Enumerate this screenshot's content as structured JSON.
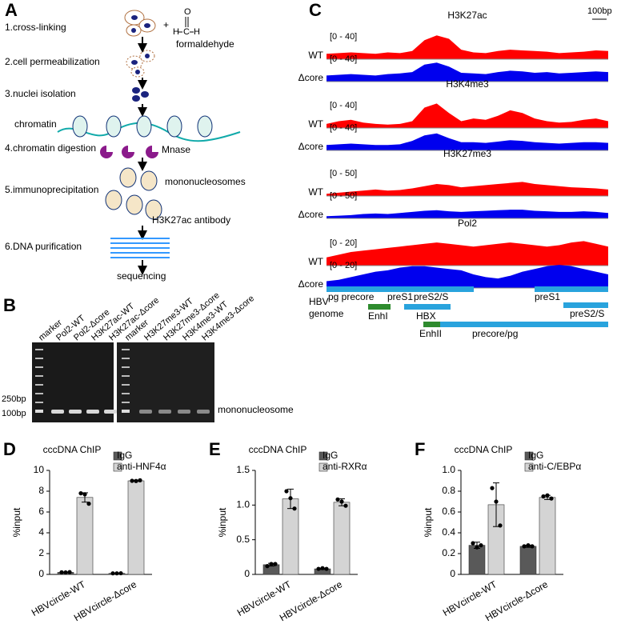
{
  "panel_a": {
    "label": "A",
    "steps": [
      "1.cross-linking",
      "2.cell permeabilization",
      "3.nuclei isolation",
      "4.chromatin digestion",
      "5.immunoprecipitation",
      "6.DNA purification"
    ],
    "plus": "+",
    "formula": [
      "O",
      "C",
      "H",
      "H"
    ],
    "labels": {
      "formaldehyde": "formaldehyde",
      "chromatin": "chromatin",
      "mnase": "Mnase",
      "mononucleosomes": "mononucleosomes",
      "antibody": "H3K27ac antibody",
      "sequencing": "sequencing"
    }
  },
  "panel_b": {
    "label": "B",
    "gel1_lanes": [
      "marker",
      "Pol2-WT",
      "Pol2-Δcore",
      "H3K27ac-WT",
      "H3K27ac-Δcore"
    ],
    "gel2_lanes": [
      "marker",
      "H3K27me3-WT",
      "H3K27me3-Δcore",
      "H3K4me3-WT",
      "H3K4me3-Δcore"
    ],
    "size_labels": [
      "250bp",
      "100bp"
    ],
    "band_label": "mononucleosome"
  },
  "panel_c": {
    "label": "C",
    "scale": "100bp",
    "tracks": [
      {
        "title": "H3K27ac",
        "samples": [
          {
            "name": "WT",
            "range_label": "[0 - 40]",
            "ylim": [
              0,
              40
            ],
            "color": "#ff0000",
            "values": [
              8,
              9,
              10,
              9,
              8,
              10,
              9,
              12,
              28,
              35,
              30,
              14,
              10,
              9,
              12,
              14,
              13,
              12,
              11,
              9,
              10,
              11,
              13,
              12
            ]
          },
          {
            "name": "Δcore",
            "range_label": "[0 - 40]",
            "ylim": [
              0,
              40
            ],
            "color": "#0000ee",
            "values": [
              9,
              10,
              11,
              10,
              9,
              11,
              12,
              14,
              25,
              28,
              22,
              13,
              12,
              11,
              14,
              16,
              15,
              13,
              14,
              12,
              13,
              14,
              15,
              14
            ]
          }
        ]
      },
      {
        "title": "H3K4me3",
        "samples": [
          {
            "name": "WT",
            "range_label": "[0 - 40]",
            "ylim": [
              0,
              40
            ],
            "color": "#ff0000",
            "values": [
              6,
              10,
              12,
              8,
              6,
              5,
              6,
              10,
              30,
              36,
              22,
              10,
              14,
              12,
              18,
              26,
              22,
              14,
              10,
              8,
              9,
              12,
              14,
              10
            ]
          },
          {
            "name": "Δcore",
            "range_label": "[0 - 40]",
            "ylim": [
              0,
              40
            ],
            "color": "#0000ee",
            "values": [
              8,
              9,
              10,
              9,
              8,
              8,
              9,
              14,
              22,
              25,
              18,
              12,
              12,
              11,
              13,
              15,
              14,
              12,
              11,
              10,
              11,
              12,
              12,
              11
            ]
          }
        ]
      },
      {
        "title": "H3K27me3",
        "samples": [
          {
            "name": "WT",
            "range_label": "[0 - 50]",
            "ylim": [
              0,
              50
            ],
            "color": "#ff0000",
            "values": [
              4,
              6,
              8,
              10,
              12,
              10,
              11,
              14,
              18,
              22,
              20,
              16,
              18,
              20,
              22,
              24,
              26,
              22,
              20,
              18,
              16,
              15,
              14,
              12
            ]
          },
          {
            "name": "Δcore",
            "range_label": "[0 - 50]",
            "ylim": [
              0,
              50
            ],
            "color": "#0000ee",
            "values": [
              4,
              5,
              6,
              8,
              9,
              8,
              10,
              12,
              14,
              15,
              13,
              12,
              13,
              14,
              15,
              16,
              16,
              14,
              13,
              12,
              12,
              13,
              12,
              10
            ]
          }
        ]
      },
      {
        "title": "Pol2",
        "samples": [
          {
            "name": "WT",
            "range_label": "[0 - 20]",
            "ylim": [
              0,
              20
            ],
            "color": "#ff0000",
            "values": [
              6,
              8,
              10,
              11,
              12,
              13,
              14,
              15,
              16,
              17,
              16,
              15,
              14,
              15,
              16,
              17,
              16,
              15,
              14,
              15,
              17,
              18,
              16,
              14
            ]
          },
          {
            "name": "Δcore",
            "range_label": "[0 - 20]",
            "ylim": [
              0,
              20
            ],
            "color": "#0000ee",
            "values": [
              5,
              6,
              8,
              10,
              12,
              13,
              15,
              16,
              16,
              15,
              14,
              13,
              10,
              8,
              7,
              9,
              12,
              14,
              16,
              17,
              16,
              14,
              12,
              10
            ]
          }
        ]
      }
    ],
    "genome_title": "HBV\ngenome",
    "genome_labels": [
      "pg precore",
      "preS1",
      "preS2/S",
      "EnhI",
      "HBX",
      "preS1",
      "preS2/S",
      "EnhII",
      "precore/pg"
    ]
  },
  "chart_data": [
    {
      "type": "bar",
      "panel_label": "D",
      "title": "cccDNA ChIP",
      "y_label": "%input",
      "categories": [
        "HBVcircle-WT",
        "HBVcircle-Δcore"
      ],
      "ylim": [
        0,
        10
      ],
      "yticks": [
        0,
        2,
        4,
        6,
        8,
        10
      ],
      "series": [
        {
          "name": "IgG",
          "color": "#595959",
          "values": [
            0.2,
            0.1
          ],
          "errors": [
            0.02,
            0.01
          ],
          "points": [
            [
              0.2,
              0.19,
              0.22
            ],
            [
              0.1,
              0.1,
              0.11
            ]
          ]
        },
        {
          "name": "anti-HNF4α",
          "color": "#d4d4d4",
          "values": [
            7.4,
            9.0
          ],
          "errors": [
            0.45,
            0.06
          ],
          "points": [
            [
              7.8,
              7.7,
              6.8
            ],
            [
              9.0,
              8.98,
              9.05
            ]
          ]
        }
      ]
    },
    {
      "type": "bar",
      "panel_label": "E",
      "title": "cccDNA ChIP",
      "y_label": "%input",
      "categories": [
        "HBVcircle-WT",
        "HBVcircle-Δcore"
      ],
      "ylim": [
        0,
        1.5
      ],
      "yticks": [
        0,
        0.5,
        {
          "value": 1,
          "label": "1.0"
        },
        1.5
      ],
      "series": [
        {
          "name": "IgG",
          "color": "#595959",
          "values": [
            0.14,
            0.08
          ],
          "errors": [
            0.02,
            0.01
          ],
          "points": [
            [
              0.12,
              0.15,
              0.15
            ],
            [
              0.08,
              0.09,
              0.08
            ]
          ]
        },
        {
          "name": "anti-RXRα",
          "color": "#d4d4d4",
          "values": [
            1.09,
            1.04
          ],
          "errors": [
            0.14,
            0.05
          ],
          "points": [
            [
              1.2,
              1.1,
              0.95
            ],
            [
              1.08,
              1.05,
              0.99
            ]
          ]
        }
      ]
    },
    {
      "type": "bar",
      "panel_label": "F",
      "title": "cccDNA ChIP",
      "y_label": "%input",
      "categories": [
        "HBVcircle-WT",
        "HBVcircle-Δcore"
      ],
      "ylim": [
        0,
        1
      ],
      "yticks": [
        0,
        0.2,
        0.4,
        0.6,
        0.8,
        {
          "value": 1,
          "label": "1.0"
        }
      ],
      "series": [
        {
          "name": "IgG",
          "color": "#595959",
          "values": [
            0.28,
            0.27
          ],
          "errors": [
            0.03,
            0.01
          ],
          "points": [
            [
              0.3,
              0.26,
              0.28
            ],
            [
              0.27,
              0.28,
              0.27
            ]
          ]
        },
        {
          "name": "anti-C/EBPα",
          "color": "#d4d4d4",
          "values": [
            0.67,
            0.74
          ],
          "errors": [
            0.21,
            0.02
          ],
          "points": [
            [
              0.83,
              0.7,
              0.47
            ],
            [
              0.75,
              0.76,
              0.73
            ]
          ]
        }
      ]
    }
  ]
}
